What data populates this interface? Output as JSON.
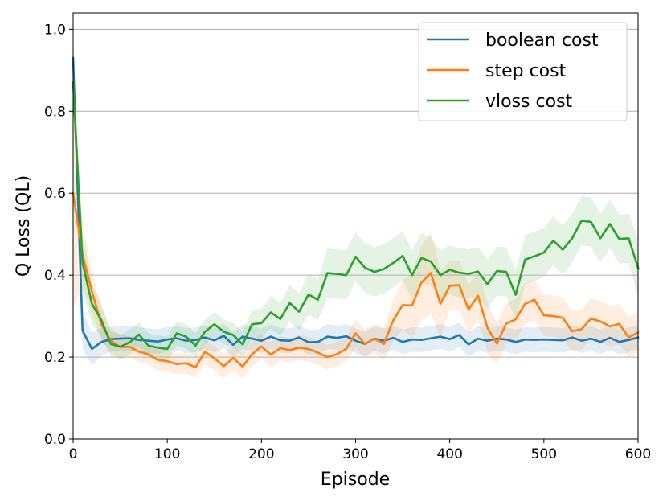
{
  "chart_data": {
    "type": "line",
    "title": "",
    "xlabel": "Episode",
    "ylabel": "Q Loss (QL)",
    "xlim": [
      0,
      600
    ],
    "ylim": [
      0,
      1.04
    ],
    "xticks": [
      0,
      100,
      200,
      300,
      400,
      500,
      600
    ],
    "xtick_labels": [
      "0",
      "100",
      "200",
      "300",
      "400",
      "500",
      "600"
    ],
    "yticks": [
      0.0,
      0.2,
      0.4,
      0.6,
      0.8,
      1.0
    ],
    "ytick_labels": [
      "0.0",
      "0.2",
      "0.4",
      "0.6",
      "0.8",
      "1.0"
    ],
    "grid": "horizontal",
    "legend_position": "top-right",
    "x": [
      0,
      10,
      20,
      30,
      40,
      50,
      60,
      70,
      80,
      90,
      100,
      110,
      120,
      130,
      140,
      150,
      160,
      170,
      180,
      190,
      200,
      210,
      220,
      230,
      240,
      250,
      260,
      270,
      280,
      290,
      300,
      310,
      320,
      330,
      340,
      350,
      360,
      370,
      380,
      390,
      400,
      410,
      420,
      430,
      440,
      450,
      460,
      470,
      480,
      490,
      500,
      510,
      520,
      530,
      540,
      550,
      560,
      570,
      580,
      590,
      600
    ],
    "series": [
      {
        "name": "boolean cost",
        "color": "#1f77b4",
        "values": [
          0.93,
          0.265,
          0.22,
          0.237,
          0.244,
          0.245,
          0.246,
          0.242,
          0.24,
          0.238,
          0.243,
          0.246,
          0.24,
          0.242,
          0.248,
          0.241,
          0.252,
          0.23,
          0.25,
          0.245,
          0.24,
          0.25,
          0.241,
          0.24,
          0.248,
          0.236,
          0.237,
          0.25,
          0.247,
          0.251,
          0.24,
          0.232,
          0.245,
          0.24,
          0.247,
          0.237,
          0.243,
          0.242,
          0.246,
          0.25,
          0.244,
          0.254,
          0.231,
          0.245,
          0.24,
          0.245,
          0.243,
          0.237,
          0.243,
          0.242,
          0.243,
          0.242,
          0.241,
          0.248,
          0.24,
          0.245,
          0.237,
          0.247,
          0.237,
          0.242,
          0.248
        ],
        "band": [
          0.05,
          0.045,
          0.04,
          0.035,
          0.03,
          0.03,
          0.03,
          0.03,
          0.03,
          0.03,
          0.03,
          0.03,
          0.03,
          0.03,
          0.03,
          0.03,
          0.03,
          0.03,
          0.03,
          0.03,
          0.03,
          0.03,
          0.03,
          0.03,
          0.03,
          0.03,
          0.03,
          0.03,
          0.03,
          0.03,
          0.03,
          0.03,
          0.03,
          0.03,
          0.03,
          0.03,
          0.03,
          0.03,
          0.03,
          0.03,
          0.03,
          0.03,
          0.03,
          0.03,
          0.03,
          0.03,
          0.03,
          0.03,
          0.03,
          0.03,
          0.03,
          0.03,
          0.03,
          0.03,
          0.03,
          0.03,
          0.03,
          0.03,
          0.03,
          0.03,
          0.03
        ]
      },
      {
        "name": "step cost",
        "color": "#ff7f0e",
        "values": [
          0.6,
          0.45,
          0.36,
          0.28,
          0.24,
          0.225,
          0.225,
          0.213,
          0.207,
          0.193,
          0.19,
          0.183,
          0.185,
          0.175,
          0.213,
          0.197,
          0.178,
          0.198,
          0.177,
          0.207,
          0.226,
          0.206,
          0.222,
          0.217,
          0.223,
          0.22,
          0.211,
          0.2,
          0.207,
          0.22,
          0.258,
          0.232,
          0.245,
          0.232,
          0.29,
          0.327,
          0.326,
          0.382,
          0.405,
          0.33,
          0.374,
          0.376,
          0.316,
          0.35,
          0.272,
          0.233,
          0.282,
          0.292,
          0.33,
          0.34,
          0.302,
          0.3,
          0.296,
          0.263,
          0.268,
          0.294,
          0.287,
          0.275,
          0.281,
          0.248,
          0.26
        ],
        "band": [
          0.28,
          0.08,
          0.05,
          0.04,
          0.03,
          0.03,
          0.025,
          0.025,
          0.025,
          0.025,
          0.025,
          0.025,
          0.025,
          0.025,
          0.03,
          0.03,
          0.03,
          0.03,
          0.03,
          0.03,
          0.03,
          0.03,
          0.03,
          0.03,
          0.03,
          0.03,
          0.03,
          0.03,
          0.03,
          0.03,
          0.035,
          0.035,
          0.035,
          0.04,
          0.05,
          0.06,
          0.08,
          0.09,
          0.1,
          0.08,
          0.06,
          0.06,
          0.06,
          0.06,
          0.06,
          0.05,
          0.05,
          0.05,
          0.05,
          0.05,
          0.05,
          0.05,
          0.05,
          0.05,
          0.05,
          0.05,
          0.05,
          0.05,
          0.05,
          0.05,
          0.05
        ]
      },
      {
        "name": "vloss cost",
        "color": "#2ca02c",
        "values": [
          0.87,
          0.43,
          0.33,
          0.29,
          0.232,
          0.225,
          0.236,
          0.255,
          0.228,
          0.223,
          0.22,
          0.258,
          0.25,
          0.228,
          0.262,
          0.28,
          0.262,
          0.254,
          0.231,
          0.28,
          0.283,
          0.309,
          0.293,
          0.332,
          0.311,
          0.353,
          0.34,
          0.405,
          0.403,
          0.4,
          0.445,
          0.418,
          0.408,
          0.415,
          0.43,
          0.447,
          0.4,
          0.442,
          0.433,
          0.4,
          0.413,
          0.406,
          0.403,
          0.409,
          0.378,
          0.41,
          0.408,
          0.352,
          0.438,
          0.446,
          0.455,
          0.484,
          0.462,
          0.49,
          0.533,
          0.53,
          0.49,
          0.525,
          0.488,
          0.49,
          0.418
        ],
        "band": [
          0.05,
          0.07,
          0.05,
          0.04,
          0.03,
          0.03,
          0.03,
          0.03,
          0.03,
          0.03,
          0.03,
          0.03,
          0.03,
          0.03,
          0.03,
          0.03,
          0.03,
          0.03,
          0.03,
          0.035,
          0.035,
          0.04,
          0.04,
          0.045,
          0.045,
          0.05,
          0.05,
          0.06,
          0.06,
          0.06,
          0.06,
          0.06,
          0.06,
          0.06,
          0.06,
          0.06,
          0.06,
          0.06,
          0.06,
          0.06,
          0.06,
          0.06,
          0.06,
          0.06,
          0.06,
          0.06,
          0.06,
          0.06,
          0.06,
          0.06,
          0.06,
          0.06,
          0.06,
          0.06,
          0.06,
          0.06,
          0.06,
          0.06,
          0.06,
          0.06,
          0.07
        ]
      }
    ]
  }
}
